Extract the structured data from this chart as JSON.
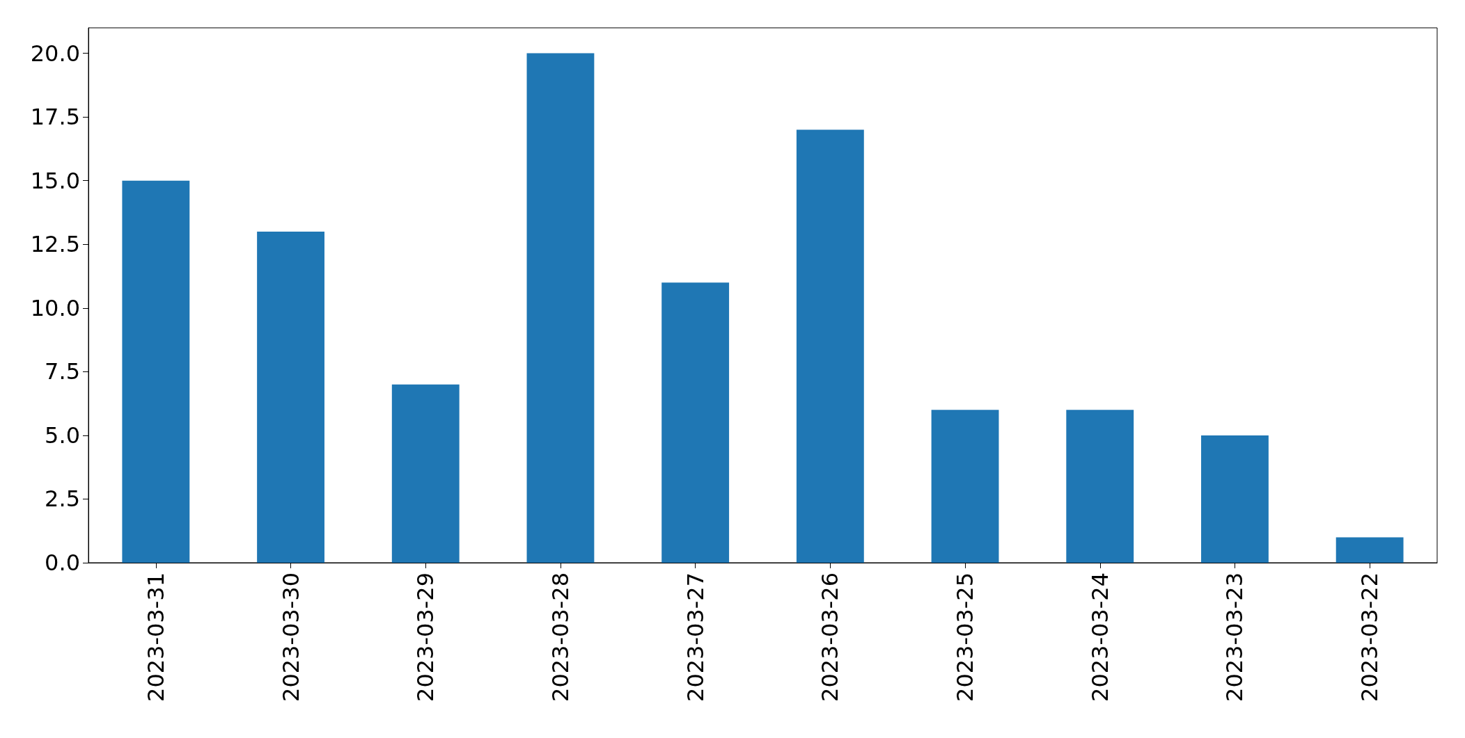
{
  "chart_data": {
    "type": "bar",
    "categories": [
      "2023-03-31",
      "2023-03-30",
      "2023-03-29",
      "2023-03-28",
      "2023-03-27",
      "2023-03-26",
      "2023-03-25",
      "2023-03-24",
      "2023-03-23",
      "2023-03-22"
    ],
    "values": [
      15,
      13,
      7,
      20,
      11,
      17,
      6,
      6,
      5,
      1
    ],
    "color": "#1f77b4",
    "ylim": [
      0,
      21
    ],
    "yticks": [
      {
        "value": 0,
        "label": "0.0"
      },
      2.5,
      {
        "value": 5,
        "label": "5.0"
      },
      7.5,
      {
        "value": 10,
        "label": "10.0"
      },
      12.5,
      {
        "value": 15,
        "label": "15.0"
      },
      17.5,
      {
        "value": 20,
        "label": "20.0"
      }
    ],
    "grid": false
  }
}
